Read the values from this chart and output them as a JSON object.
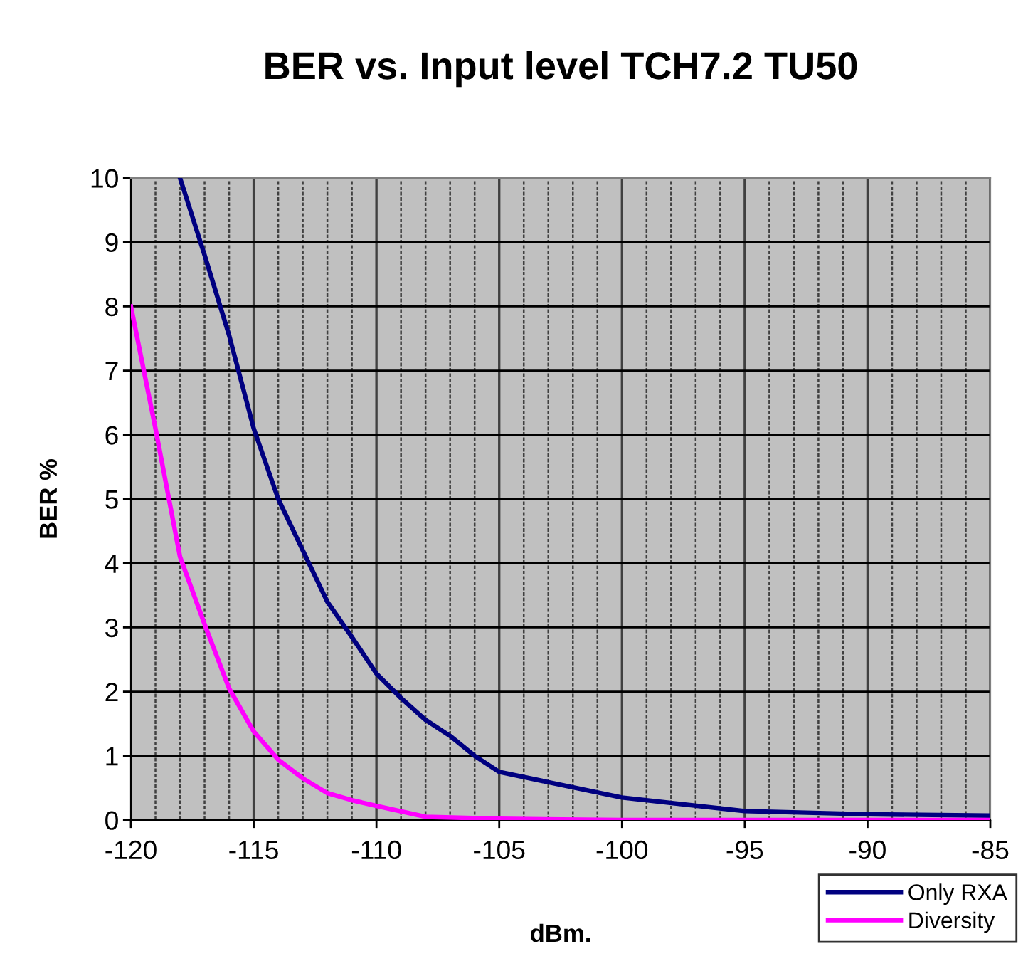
{
  "chart_data": {
    "type": "line",
    "title": "BER vs. Input level TCH7.2 TU50",
    "xlabel": "dBm.",
    "ylabel": "BER %",
    "series": [
      {
        "name": "Only RXA",
        "color": "#000080",
        "x": [
          -118,
          -117,
          -116,
          -115,
          -114,
          -113,
          -112,
          -111,
          -110,
          -109,
          -108,
          -107,
          -106,
          -105,
          -100,
          -95,
          -90,
          -85
        ],
        "values": [
          10.0,
          8.8,
          7.55,
          6.1,
          5.0,
          4.2,
          3.4,
          2.85,
          2.28,
          1.9,
          1.56,
          1.31,
          1.0,
          0.75,
          0.35,
          0.14,
          0.09,
          0.07
        ]
      },
      {
        "name": "Diversity",
        "color": "#ff00ff",
        "x": [
          -120,
          -119,
          -118,
          -117,
          -116,
          -115,
          -114,
          -113,
          -112,
          -111,
          -110,
          -108,
          -105,
          -100,
          -95,
          -90,
          -85
        ],
        "values": [
          8.0,
          6.1,
          4.1,
          3.05,
          2.05,
          1.38,
          0.94,
          0.65,
          0.42,
          0.31,
          0.22,
          0.05,
          0.02,
          0.0,
          0.0,
          0.0,
          0.0
        ]
      }
    ],
    "xlim": [
      -120,
      -85
    ],
    "xticks": [
      -120,
      {
        "value": -119,
        "label": null
      },
      {
        "value": -118,
        "label": null
      },
      {
        "value": -117,
        "label": null
      },
      {
        "value": -116,
        "label": null
      },
      -115,
      {
        "value": -114,
        "label": null
      },
      {
        "value": -113,
        "label": null
      },
      {
        "value": -112,
        "label": null
      },
      {
        "value": -111,
        "label": null
      },
      -110,
      {
        "value": -109,
        "label": null
      },
      {
        "value": -108,
        "label": null
      },
      {
        "value": -107,
        "label": null
      },
      {
        "value": -106,
        "label": null
      },
      -105,
      {
        "value": -104,
        "label": null
      },
      {
        "value": -103,
        "label": null
      },
      {
        "value": -102,
        "label": null
      },
      {
        "value": -101,
        "label": null
      },
      -100,
      {
        "value": -99,
        "label": null
      },
      {
        "value": -98,
        "label": null
      },
      {
        "value": -97,
        "label": null
      },
      {
        "value": -96,
        "label": null
      },
      -95,
      {
        "value": -94,
        "label": null
      },
      {
        "value": -93,
        "label": null
      },
      {
        "value": -92,
        "label": null
      },
      {
        "value": -91,
        "label": null
      },
      -90,
      {
        "value": -89,
        "label": null
      },
      {
        "value": -88,
        "label": null
      },
      {
        "value": -87,
        "label": null
      },
      {
        "value": -86,
        "label": null
      },
      -85
    ],
    "ylim": [
      0,
      10
    ],
    "yticks": [
      0,
      1,
      2,
      3,
      4,
      5,
      6,
      7,
      8,
      9,
      10
    ],
    "grid": true,
    "legend": "bottom right"
  }
}
